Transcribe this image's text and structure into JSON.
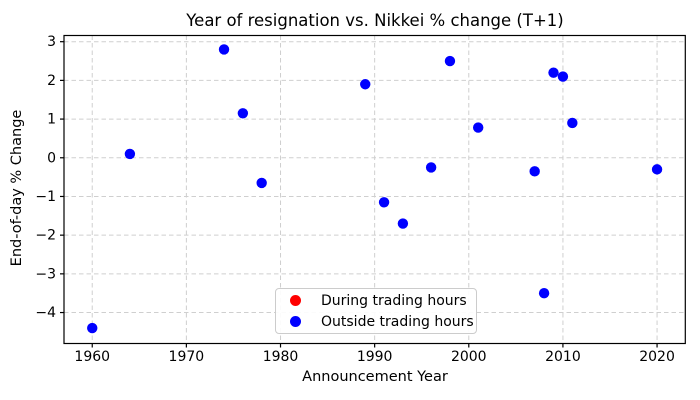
{
  "chart_data": {
    "type": "scatter",
    "title": "Year of resignation vs. Nikkei % change (T+1)",
    "xlabel": "Announcement Year",
    "ylabel": "End-of-day % Change",
    "xlim": [
      1957,
      2023
    ],
    "ylim": [
      -4.8,
      3.16
    ],
    "xticks": [
      1960,
      1970,
      1980,
      1990,
      2000,
      2010,
      2020
    ],
    "xtick_labels": [
      "1960",
      "1970",
      "1980",
      "1990",
      "2000",
      "2010",
      "2020"
    ],
    "yticks": [
      3,
      2,
      1,
      0,
      -1,
      -2,
      -3,
      -4
    ],
    "ytick_labels": [
      "3",
      "2",
      "1",
      "0",
      "−1",
      "−2",
      "−3",
      "−4"
    ],
    "grid": true,
    "legend_position": "lower center",
    "series": [
      {
        "name": "During trading hours",
        "color": "#ff0000",
        "points": []
      },
      {
        "name": "Outside trading hours",
        "color": "#0000ff",
        "points": [
          [
            1960,
            -4.4
          ],
          [
            1964,
            0.1
          ],
          [
            1974,
            2.8
          ],
          [
            1976,
            1.15
          ],
          [
            1978,
            -0.65
          ],
          [
            1989,
            1.9
          ],
          [
            1991,
            -1.15
          ],
          [
            1993,
            -1.7
          ],
          [
            1996,
            -0.25
          ],
          [
            1998,
            2.5
          ],
          [
            2001,
            0.78
          ],
          [
            2007,
            -0.35
          ],
          [
            2008,
            -3.5
          ],
          [
            2009,
            2.2
          ],
          [
            2010,
            2.1
          ],
          [
            2011,
            0.9
          ],
          [
            2020,
            -0.3
          ]
        ]
      }
    ],
    "colors": {
      "background": "#ffffff",
      "grid": "#cfcfcf",
      "spine": "#000000",
      "text": "#000000"
    }
  }
}
